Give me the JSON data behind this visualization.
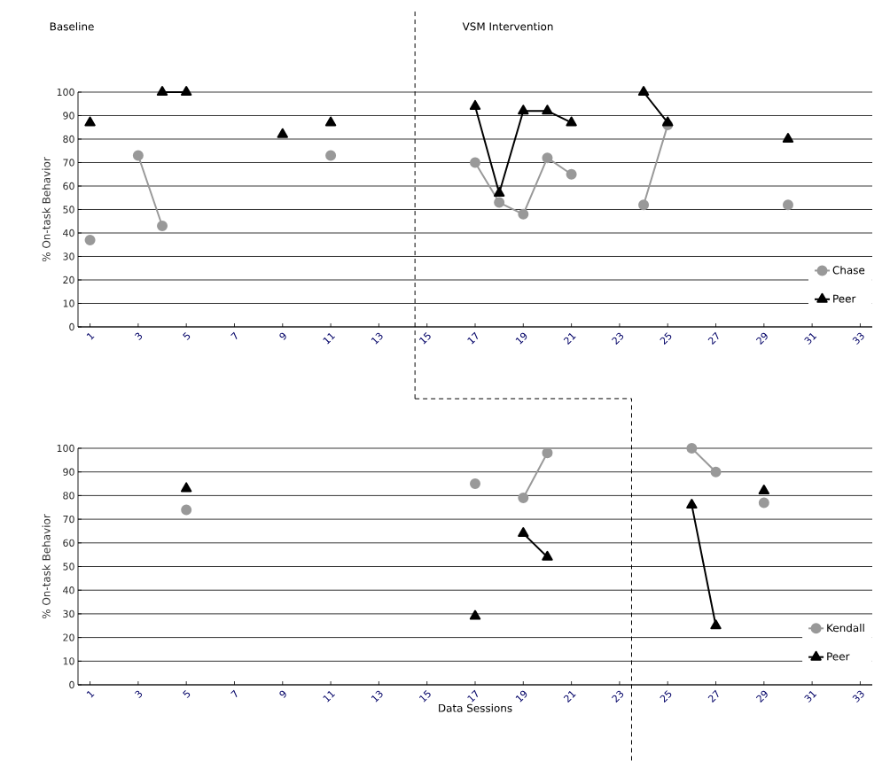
{
  "chart_data": [
    {
      "type": "line",
      "ylabel": "% On-task Behavior",
      "x": [
        1,
        2,
        3,
        4,
        5,
        6,
        7,
        8,
        9,
        10,
        11,
        12,
        13,
        14,
        15,
        16,
        17,
        18,
        19,
        20,
        21,
        22,
        23,
        24,
        25,
        26,
        27,
        28,
        29,
        30
      ],
      "xlim": [
        0.5,
        33.5
      ],
      "xticks": [
        1,
        3,
        5,
        7,
        9,
        11,
        13,
        15,
        17,
        19,
        21,
        23,
        25,
        27,
        29,
        31,
        33
      ],
      "ylim": [
        0,
        100
      ],
      "yticks": [
        0,
        10,
        20,
        30,
        40,
        50,
        60,
        70,
        80,
        90,
        100
      ],
      "grid": "y",
      "legend": "bottom right",
      "annotations": [
        "Baseline",
        "VSM Intervention"
      ],
      "ref_lines": [
        {
          "axis": "x",
          "value": 14.5,
          "line_style": "dashed",
          "color": "#000000"
        }
      ],
      "series": [
        {
          "name": "Chase",
          "color": "#999999",
          "marker": "circle",
          "values": [
            37,
            null,
            73,
            43,
            null,
            null,
            null,
            null,
            null,
            null,
            73,
            null,
            null,
            null,
            null,
            null,
            70,
            53,
            48,
            72,
            65,
            null,
            null,
            52,
            86,
            null,
            null,
            null,
            null,
            52
          ]
        },
        {
          "name": "Peer",
          "color": "#000000",
          "marker": "triangle",
          "values": [
            87,
            null,
            null,
            100,
            100,
            null,
            null,
            null,
            82,
            null,
            87,
            null,
            null,
            null,
            null,
            null,
            94,
            57,
            92,
            92,
            87,
            null,
            null,
            100,
            87,
            null,
            null,
            null,
            null,
            80
          ]
        }
      ]
    },
    {
      "type": "line",
      "ylabel": "% On-task Behavior",
      "xlabel": "Data Sessions",
      "x": [
        5,
        6,
        7,
        8,
        9,
        10,
        11,
        12,
        13,
        14,
        15,
        16,
        17,
        18,
        19,
        20,
        21,
        22,
        23,
        24,
        25,
        26,
        27,
        28,
        29
      ],
      "xlim": [
        0.5,
        33.5
      ],
      "xticks": [
        1,
        3,
        5,
        7,
        9,
        11,
        13,
        15,
        17,
        19,
        21,
        23,
        25,
        27,
        29,
        31,
        33
      ],
      "ylim": [
        0,
        100
      ],
      "yticks": [
        0,
        10,
        20,
        30,
        40,
        50,
        60,
        70,
        80,
        90,
        100
      ],
      "grid": "y",
      "legend": "bottom right",
      "ref_lines": [
        {
          "axis": "x",
          "value": 23.5,
          "line_style": "dashed",
          "color": "#000000"
        }
      ],
      "series": [
        {
          "name": "Kendall",
          "color": "#999999",
          "marker": "circle",
          "values": [
            74,
            null,
            null,
            null,
            null,
            null,
            null,
            null,
            null,
            null,
            null,
            null,
            85,
            null,
            79,
            98,
            null,
            null,
            null,
            null,
            null,
            100,
            90,
            null,
            77
          ]
        },
        {
          "name": "Peer",
          "color": "#000000",
          "marker": "triangle",
          "values": [
            83,
            null,
            null,
            null,
            null,
            null,
            null,
            null,
            null,
            null,
            null,
            null,
            29,
            null,
            64,
            54,
            null,
            null,
            null,
            null,
            null,
            76,
            25,
            null,
            82
          ]
        }
      ]
    }
  ]
}
